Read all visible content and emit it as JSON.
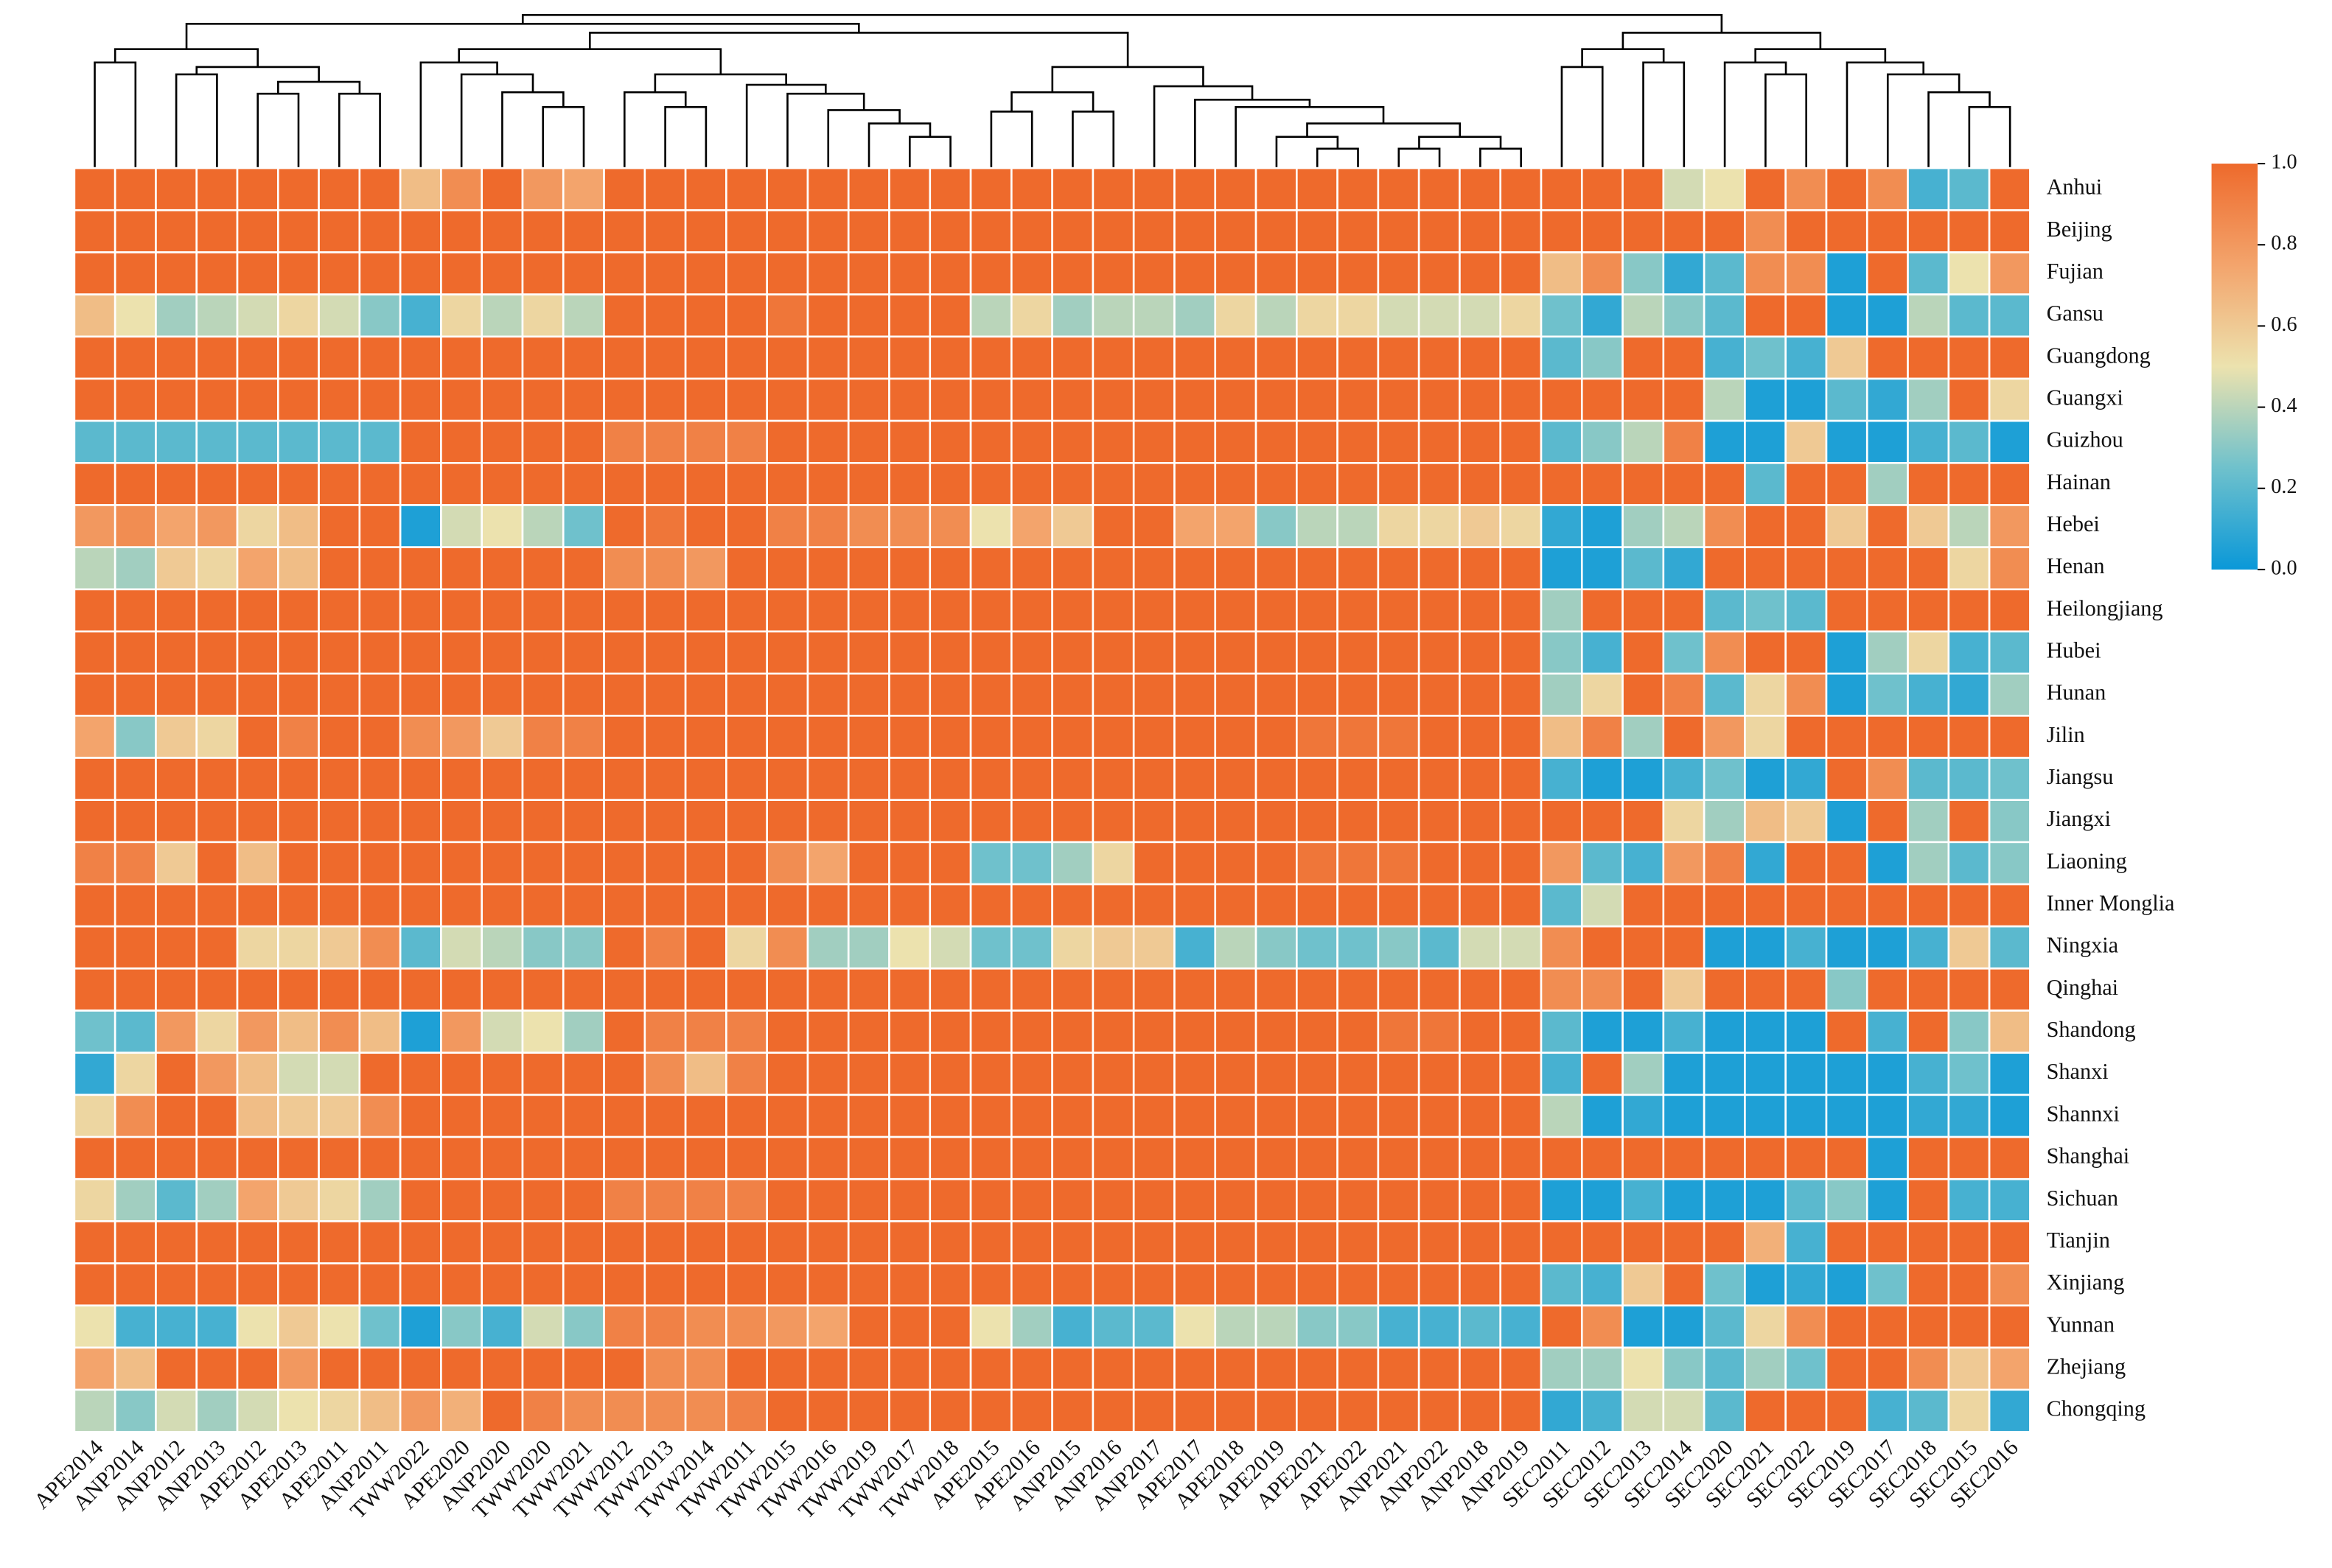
{
  "chart_data": {
    "type": "heatmap",
    "categories": [
      "APE2014",
      "ANP2014",
      "ANP2012",
      "ANP2013",
      "APE2012",
      "APE2013",
      "APE2011",
      "ANP2011",
      "TWW2022",
      "APE2020",
      "ANP2020",
      "TWW2020",
      "TWW2021",
      "TWW2012",
      "TWW2013",
      "TWW2014",
      "TWW2011",
      "TWW2015",
      "TWW2016",
      "TWW2019",
      "TWW2017",
      "TWW2018",
      "APE2015",
      "APE2016",
      "ANP2015",
      "ANP2016",
      "ANP2017",
      "APE2017",
      "APE2018",
      "APE2019",
      "APE2021",
      "APE2022",
      "ANP2021",
      "ANP2022",
      "ANP2018",
      "ANP2019",
      "SEC2011",
      "SEC2012",
      "SEC2013",
      "SEC2014",
      "SEC2020",
      "SEC2021",
      "SEC2022",
      "SEC2019",
      "SEC2017",
      "SEC2018",
      "SEC2015",
      "SEC2016"
    ],
    "rows": [
      "Anhui",
      "Beijing",
      "Fujian",
      "Gansu",
      "Guangdong",
      "Guangxi",
      "Guizhou",
      "Hainan",
      "Hebei",
      "Henan",
      "Heilongjiang",
      "Hubei",
      "Hunan",
      "Jilin",
      "Jiangsu",
      "Jiangxi",
      "Liaoning",
      "Inner Monglia",
      "Ningxia",
      "Qinghai",
      "Shandong",
      "Shanxi",
      "Shannxi",
      "Shanghai",
      "Sichuan",
      "Tianjin",
      "Xinjiang",
      "Yunnan",
      "Zhejiang",
      "Chongqing"
    ],
    "values": [
      [
        1,
        1,
        1,
        1,
        1,
        1,
        1,
        1,
        0.65,
        0.85,
        1,
        0.8,
        0.75,
        1,
        1,
        1,
        1,
        1,
        1,
        1,
        1,
        1,
        1,
        1,
        1,
        1,
        1,
        1,
        1,
        1,
        1,
        1,
        1,
        1,
        1,
        1,
        1,
        1,
        1,
        0.45,
        0.5,
        1,
        0.85,
        1,
        0.85,
        0.15,
        0.2,
        1
      ],
      [
        1,
        1,
        1,
        1,
        1,
        1,
        1,
        1,
        1,
        1,
        1,
        1,
        1,
        1,
        1,
        1,
        1,
        1,
        1,
        1,
        1,
        1,
        1,
        1,
        1,
        1,
        1,
        1,
        1,
        1,
        1,
        1,
        1,
        1,
        1,
        1,
        1,
        1,
        1,
        1,
        1,
        0.85,
        1,
        1,
        1,
        1,
        1,
        1
      ],
      [
        1,
        1,
        1,
        1,
        1,
        1,
        1,
        1,
        1,
        1,
        1,
        1,
        1,
        1,
        1,
        1,
        1,
        1,
        1,
        1,
        1,
        1,
        1,
        1,
        1,
        1,
        1,
        1,
        1,
        1,
        1,
        1,
        1,
        1,
        1,
        1,
        0.65,
        0.85,
        0.3,
        0.1,
        0.2,
        0.85,
        0.85,
        0.05,
        1,
        0.2,
        0.5,
        0.8
      ],
      [
        0.65,
        0.5,
        0.35,
        0.4,
        0.45,
        0.55,
        0.45,
        0.3,
        0.15,
        0.55,
        0.4,
        0.55,
        0.4,
        1,
        1,
        1,
        1,
        0.95,
        1,
        1,
        1,
        1,
        0.4,
        0.55,
        0.35,
        0.4,
        0.4,
        0.35,
        0.55,
        0.4,
        0.55,
        0.55,
        0.45,
        0.45,
        0.45,
        0.55,
        0.25,
        0.1,
        0.4,
        0.3,
        0.2,
        1,
        1,
        0.05,
        0.05,
        0.4,
        0.2,
        0.2
      ],
      [
        1,
        1,
        1,
        1,
        1,
        1,
        1,
        1,
        1,
        1,
        1,
        1,
        1,
        1,
        1,
        1,
        1,
        1,
        1,
        1,
        1,
        1,
        1,
        1,
        1,
        1,
        1,
        1,
        1,
        1,
        1,
        1,
        1,
        1,
        1,
        1,
        0.2,
        0.3,
        1,
        1,
        0.15,
        0.25,
        0.15,
        0.6,
        1,
        1,
        1,
        1
      ],
      [
        1,
        1,
        1,
        1,
        1,
        1,
        1,
        1,
        1,
        1,
        1,
        1,
        1,
        1,
        1,
        1,
        1,
        1,
        1,
        1,
        1,
        1,
        1,
        1,
        1,
        1,
        1,
        1,
        1,
        1,
        1,
        1,
        1,
        1,
        1,
        1,
        1,
        1,
        1,
        1,
        0.4,
        0.05,
        0.05,
        0.2,
        0.1,
        0.35,
        1,
        0.55
      ],
      [
        0.2,
        0.2,
        0.2,
        0.2,
        0.2,
        0.2,
        0.2,
        0.2,
        1,
        1,
        1,
        1,
        1,
        0.9,
        0.9,
        0.9,
        0.9,
        1,
        1,
        1,
        1,
        1,
        1,
        1,
        1,
        1,
        1,
        1,
        1,
        1,
        1,
        1,
        1,
        1,
        1,
        1,
        0.2,
        0.3,
        0.4,
        0.9,
        0.05,
        0.05,
        0.6,
        0.05,
        0.05,
        0.15,
        0.2,
        0.05
      ],
      [
        1,
        1,
        1,
        1,
        1,
        1,
        1,
        1,
        1,
        1,
        1,
        1,
        1,
        1,
        1,
        1,
        1,
        1,
        1,
        1,
        1,
        1,
        1,
        1,
        1,
        1,
        1,
        1,
        1,
        1,
        1,
        1,
        1,
        1,
        1,
        1,
        1,
        1,
        1,
        1,
        1,
        0.2,
        1,
        1,
        0.35,
        1,
        1,
        1
      ],
      [
        0.8,
        0.85,
        0.75,
        0.8,
        0.55,
        0.65,
        1,
        1,
        0.05,
        0.45,
        0.5,
        0.4,
        0.25,
        1,
        0.95,
        1,
        1,
        0.9,
        0.9,
        0.85,
        0.85,
        0.85,
        0.5,
        0.75,
        0.6,
        1,
        1,
        0.75,
        0.75,
        0.3,
        0.4,
        0.4,
        0.55,
        0.55,
        0.6,
        0.55,
        0.1,
        0.05,
        0.35,
        0.4,
        0.85,
        1,
        1,
        0.6,
        1,
        0.6,
        0.4,
        0.8
      ],
      [
        0.4,
        0.35,
        0.6,
        0.55,
        0.75,
        0.65,
        1,
        1,
        1,
        1,
        1,
        1,
        1,
        0.85,
        0.85,
        0.8,
        1,
        1,
        1,
        1,
        1,
        1,
        1,
        1,
        1,
        1,
        1,
        1,
        1,
        1,
        1,
        1,
        1,
        1,
        1,
        1,
        0.05,
        0.05,
        0.2,
        0.1,
        1,
        1,
        1,
        1,
        1,
        1,
        0.55,
        0.85
      ],
      [
        1,
        1,
        1,
        1,
        1,
        1,
        1,
        1,
        1,
        1,
        1,
        1,
        1,
        1,
        1,
        1,
        1,
        1,
        1,
        1,
        1,
        1,
        1,
        1,
        1,
        1,
        1,
        1,
        1,
        1,
        1,
        1,
        1,
        1,
        1,
        1,
        0.35,
        1,
        1,
        1,
        0.2,
        0.25,
        0.2,
        1,
        1,
        1,
        1,
        1
      ],
      [
        1,
        1,
        1,
        1,
        1,
        1,
        1,
        1,
        1,
        1,
        1,
        1,
        1,
        1,
        1,
        1,
        1,
        1,
        1,
        1,
        1,
        1,
        1,
        1,
        1,
        1,
        1,
        1,
        1,
        1,
        1,
        1,
        1,
        1,
        1,
        1,
        0.3,
        0.15,
        1,
        0.25,
        0.85,
        1,
        1,
        0.05,
        0.35,
        0.55,
        0.15,
        0.2
      ],
      [
        1,
        1,
        1,
        1,
        1,
        1,
        1,
        1,
        1,
        1,
        1,
        1,
        1,
        1,
        1,
        1,
        1,
        1,
        1,
        1,
        1,
        1,
        1,
        1,
        1,
        1,
        1,
        1,
        1,
        1,
        1,
        1,
        1,
        1,
        1,
        1,
        0.35,
        0.55,
        1,
        0.9,
        0.2,
        0.55,
        0.85,
        0.05,
        0.25,
        0.15,
        0.1,
        0.35
      ],
      [
        0.75,
        0.3,
        0.6,
        0.55,
        1,
        0.9,
        1,
        1,
        0.85,
        0.8,
        0.6,
        0.9,
        0.9,
        1,
        1,
        1,
        1,
        1,
        1,
        1,
        1,
        1,
        1,
        1,
        1,
        1,
        1,
        1,
        1,
        1,
        0.95,
        0.95,
        0.95,
        1,
        1,
        1,
        0.65,
        0.9,
        0.35,
        1,
        0.8,
        0.55,
        1,
        1,
        1,
        1,
        1,
        1
      ],
      [
        1,
        1,
        1,
        1,
        1,
        1,
        1,
        1,
        1,
        1,
        1,
        1,
        1,
        1,
        1,
        1,
        1,
        1,
        1,
        1,
        1,
        1,
        1,
        1,
        1,
        1,
        1,
        1,
        1,
        1,
        1,
        1,
        1,
        1,
        1,
        1,
        0.15,
        0.05,
        0.05,
        0.15,
        0.25,
        0.05,
        0.1,
        1,
        0.85,
        0.2,
        0.2,
        0.25
      ],
      [
        1,
        1,
        1,
        1,
        1,
        1,
        1,
        1,
        1,
        1,
        1,
        1,
        1,
        1,
        1,
        1,
        1,
        1,
        1,
        1,
        1,
        1,
        1,
        1,
        1,
        1,
        1,
        1,
        1,
        1,
        1,
        1,
        1,
        1,
        1,
        1,
        1,
        1,
        1,
        0.55,
        0.35,
        0.65,
        0.6,
        0.05,
        1,
        0.35,
        1,
        0.3
      ],
      [
        0.9,
        0.9,
        0.6,
        1,
        0.65,
        1,
        1,
        1,
        1,
        1,
        1,
        1,
        1,
        1,
        1,
        1,
        1,
        0.85,
        0.75,
        1,
        1,
        1,
        0.25,
        0.25,
        0.35,
        0.55,
        1,
        1,
        1,
        1,
        0.95,
        0.95,
        0.95,
        1,
        1,
        1,
        0.8,
        0.2,
        0.15,
        0.8,
        0.9,
        0.1,
        1,
        1,
        0.05,
        0.35,
        0.2,
        0.3
      ],
      [
        1,
        1,
        1,
        1,
        1,
        1,
        1,
        1,
        1,
        1,
        1,
        1,
        1,
        1,
        1,
        1,
        1,
        1,
        1,
        1,
        1,
        1,
        1,
        1,
        1,
        1,
        1,
        1,
        1,
        1,
        1,
        1,
        1,
        1,
        1,
        1,
        0.2,
        0.45,
        1,
        1,
        1,
        1,
        1,
        1,
        1,
        1,
        1,
        1
      ],
      [
        1,
        1,
        1,
        1,
        0.55,
        0.55,
        0.6,
        0.85,
        0.2,
        0.45,
        0.4,
        0.3,
        0.3,
        1,
        0.9,
        1,
        0.55,
        0.85,
        0.35,
        0.35,
        0.5,
        0.45,
        0.25,
        0.25,
        0.55,
        0.6,
        0.6,
        0.15,
        0.4,
        0.3,
        0.25,
        0.25,
        0.3,
        0.2,
        0.45,
        0.45,
        0.85,
        1,
        1,
        1,
        0.05,
        0.05,
        0.15,
        0.05,
        0.05,
        0.15,
        0.6,
        0.2
      ],
      [
        1,
        1,
        1,
        1,
        1,
        1,
        1,
        1,
        1,
        1,
        1,
        1,
        1,
        1,
        1,
        1,
        1,
        1,
        1,
        1,
        1,
        1,
        1,
        1,
        1,
        1,
        1,
        1,
        1,
        1,
        1,
        1,
        1,
        1,
        1,
        1,
        0.85,
        0.85,
        1,
        0.6,
        1,
        1,
        1,
        0.3,
        1,
        1,
        1,
        1
      ],
      [
        0.25,
        0.2,
        0.8,
        0.55,
        0.8,
        0.65,
        0.85,
        0.65,
        0.05,
        0.8,
        0.45,
        0.5,
        0.35,
        1,
        0.9,
        0.9,
        0.9,
        1,
        1,
        1,
        1,
        1,
        1,
        1,
        1,
        1,
        1,
        1,
        1,
        1,
        1,
        1,
        0.95,
        0.95,
        1,
        1,
        0.2,
        0.05,
        0.05,
        0.15,
        0.05,
        0.05,
        0.05,
        1,
        0.15,
        1,
        0.3,
        0.65
      ],
      [
        0.1,
        0.55,
        1,
        0.8,
        0.65,
        0.45,
        0.45,
        1,
        1,
        1,
        1,
        1,
        1,
        1,
        0.85,
        0.65,
        0.9,
        1,
        1,
        1,
        1,
        1,
        1,
        1,
        1,
        1,
        1,
        1,
        1,
        1,
        1,
        1,
        1,
        1,
        1,
        1,
        0.15,
        1,
        0.35,
        0.05,
        0.05,
        0.05,
        0.05,
        0.05,
        0.05,
        0.15,
        0.25,
        0.05
      ],
      [
        0.55,
        0.85,
        1,
        1,
        0.65,
        0.6,
        0.6,
        0.85,
        1,
        1,
        1,
        1,
        1,
        1,
        1,
        1,
        1,
        1,
        1,
        1,
        1,
        1,
        1,
        1,
        1,
        1,
        1,
        1,
        1,
        1,
        1,
        1,
        1,
        1,
        1,
        1,
        0.4,
        0.05,
        0.1,
        0.05,
        0.05,
        0.05,
        0.05,
        0.05,
        0.05,
        0.1,
        0.1,
        0.05
      ],
      [
        1,
        1,
        1,
        1,
        1,
        1,
        1,
        1,
        1,
        1,
        1,
        1,
        1,
        1,
        1,
        1,
        1,
        1,
        1,
        1,
        1,
        1,
        1,
        1,
        1,
        1,
        1,
        1,
        1,
        1,
        1,
        1,
        1,
        1,
        1,
        1,
        1,
        1,
        1,
        1,
        1,
        1,
        1,
        1,
        0.05,
        1,
        1,
        1
      ],
      [
        0.55,
        0.35,
        0.2,
        0.35,
        0.75,
        0.6,
        0.55,
        0.35,
        1,
        1,
        1,
        1,
        1,
        0.9,
        0.9,
        0.9,
        0.9,
        1,
        1,
        1,
        1,
        1,
        1,
        1,
        1,
        1,
        1,
        1,
        1,
        1,
        1,
        1,
        1,
        1,
        1,
        1,
        0.05,
        0.05,
        0.15,
        0.05,
        0.05,
        0.05,
        0.2,
        0.3,
        0.05,
        1,
        0.15,
        0.15
      ],
      [
        1,
        1,
        1,
        1,
        1,
        1,
        1,
        1,
        1,
        1,
        1,
        1,
        1,
        1,
        1,
        1,
        1,
        1,
        1,
        1,
        1,
        1,
        1,
        1,
        1,
        1,
        1,
        1,
        1,
        1,
        1,
        1,
        1,
        1,
        1,
        1,
        1,
        1,
        1,
        1,
        1,
        0.7,
        0.15,
        1,
        1,
        1,
        1,
        1
      ],
      [
        1,
        1,
        1,
        1,
        1,
        1,
        1,
        1,
        1,
        1,
        1,
        1,
        1,
        1,
        1,
        1,
        1,
        1,
        1,
        1,
        1,
        1,
        1,
        1,
        1,
        1,
        1,
        1,
        1,
        1,
        1,
        1,
        1,
        1,
        1,
        1,
        0.2,
        0.15,
        0.6,
        1,
        0.25,
        0.05,
        0.1,
        0.05,
        0.25,
        1,
        1,
        0.85
      ],
      [
        0.5,
        0.15,
        0.15,
        0.15,
        0.5,
        0.6,
        0.5,
        0.25,
        0.05,
        0.3,
        0.15,
        0.45,
        0.3,
        0.9,
        0.9,
        0.85,
        0.85,
        0.8,
        0.75,
        1,
        1,
        1,
        0.5,
        0.35,
        0.15,
        0.2,
        0.2,
        0.5,
        0.4,
        0.4,
        0.3,
        0.3,
        0.15,
        0.15,
        0.2,
        0.15,
        1,
        0.85,
        0.05,
        0.05,
        0.2,
        0.55,
        0.85,
        1,
        1,
        1,
        1,
        1
      ],
      [
        0.75,
        0.65,
        1,
        1,
        1,
        0.8,
        1,
        1,
        1,
        1,
        1,
        1,
        1,
        1,
        0.85,
        0.85,
        1,
        1,
        1,
        1,
        1,
        1,
        1,
        1,
        1,
        1,
        1,
        1,
        1,
        1,
        1,
        1,
        1,
        1,
        1,
        1,
        0.35,
        0.35,
        0.5,
        0.3,
        0.2,
        0.35,
        0.25,
        1,
        1,
        0.85,
        0.6,
        0.75
      ],
      [
        0.4,
        0.3,
        0.45,
        0.35,
        0.45,
        0.5,
        0.55,
        0.65,
        0.8,
        0.7,
        1,
        0.9,
        0.85,
        0.85,
        0.85,
        0.85,
        0.9,
        1,
        1,
        1,
        1,
        1,
        1,
        1,
        1,
        1,
        1,
        1,
        1,
        1,
        1,
        1,
        1,
        1,
        1,
        1,
        0.1,
        0.15,
        0.45,
        0.45,
        0.2,
        1,
        1,
        1,
        0.15,
        0.2,
        0.55,
        0.1
      ]
    ],
    "zlim": [
      0,
      1
    ],
    "colorscale": [
      "#0a98d8",
      "#6fc1cc",
      "#ece2ae",
      "#f3a46c",
      "#ee6a2c"
    ],
    "colorbar_ticks": [
      {
        "value": 0,
        "label": "0.0"
      },
      {
        "value": 0.2,
        "label": "0.2"
      },
      {
        "value": 0.4,
        "label": "0.4"
      },
      {
        "value": 0.6,
        "label": "0.6"
      },
      {
        "value": 0.8,
        "label": "0.8"
      },
      {
        "value": 1,
        "label": "1.0"
      }
    ]
  }
}
